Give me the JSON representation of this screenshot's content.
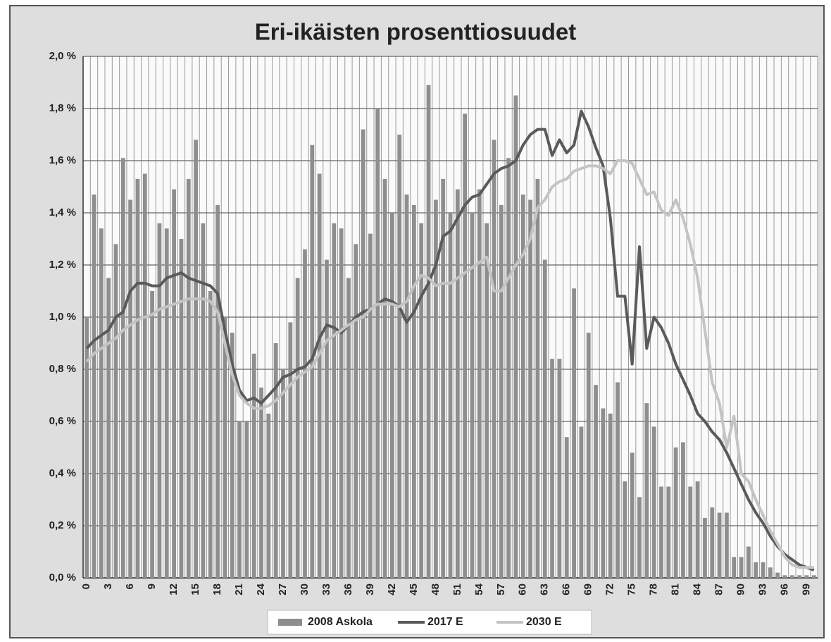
{
  "chart_data": {
    "type": "combo",
    "title": "Eri-ikäisten prosenttiosuudet",
    "categories": [
      "0",
      null,
      null,
      "3",
      null,
      null,
      "6",
      null,
      null,
      "9",
      null,
      null,
      "12",
      null,
      null,
      "15",
      null,
      null,
      "18",
      null,
      null,
      "21",
      null,
      null,
      "24",
      null,
      null,
      "27",
      null,
      null,
      "30",
      null,
      null,
      "33",
      null,
      null,
      "36",
      null,
      null,
      "39",
      null,
      null,
      "42",
      null,
      null,
      "45",
      null,
      null,
      "48",
      null,
      null,
      "51",
      null,
      null,
      "54",
      null,
      null,
      "57",
      null,
      null,
      "60",
      null,
      null,
      "63",
      null,
      null,
      "66",
      null,
      null,
      "69",
      null,
      null,
      "72",
      null,
      null,
      "75",
      null,
      null,
      "78",
      null,
      null,
      "81",
      null,
      null,
      "84",
      null,
      null,
      "87",
      null,
      null,
      "90",
      null,
      null,
      "93",
      null,
      null,
      "96",
      null,
      null,
      "99",
      null
    ],
    "series": [
      {
        "name": "2008 Askola",
        "type": "bar",
        "color": "#8e8e8e",
        "values": [
          1.0,
          1.47,
          1.34,
          1.15,
          1.28,
          1.61,
          1.45,
          1.53,
          1.55,
          1.1,
          1.36,
          1.34,
          1.49,
          1.3,
          1.53,
          1.68,
          1.36,
          1.1,
          1.43,
          1.0,
          0.94,
          0.6,
          0.6,
          0.86,
          0.73,
          0.63,
          0.9,
          0.8,
          0.98,
          1.15,
          1.26,
          1.66,
          1.55,
          1.22,
          1.36,
          1.34,
          1.15,
          1.28,
          1.72,
          1.32,
          1.8,
          1.53,
          1.4,
          1.7,
          1.47,
          1.43,
          1.36,
          1.89,
          1.45,
          1.53,
          1.4,
          1.49,
          1.78,
          1.4,
          1.49,
          1.36,
          1.68,
          1.43,
          1.61,
          1.85,
          1.47,
          1.45,
          1.53,
          1.22,
          0.84,
          0.84,
          0.54,
          1.11,
          0.58,
          0.94,
          0.74,
          0.65,
          0.63,
          0.75,
          0.37,
          0.48,
          0.31,
          0.67,
          0.58,
          0.35,
          0.35,
          0.5,
          0.52,
          0.35,
          0.37,
          0.23,
          0.27,
          0.25,
          0.25,
          0.08,
          0.08,
          0.12,
          0.06,
          0.06,
          0.04,
          0.02,
          0.01,
          0.01,
          0.01,
          0.01,
          0.01
        ]
      },
      {
        "name": "2017 E",
        "type": "line",
        "color": "#5a5a5a",
        "values": [
          0.88,
          0.91,
          0.93,
          0.95,
          1.0,
          1.02,
          1.1,
          1.13,
          1.13,
          1.12,
          1.12,
          1.15,
          1.16,
          1.17,
          1.15,
          1.14,
          1.13,
          1.12,
          1.09,
          0.95,
          0.82,
          0.72,
          0.68,
          0.69,
          0.67,
          0.7,
          0.73,
          0.77,
          0.78,
          0.8,
          0.81,
          0.84,
          0.92,
          0.97,
          0.96,
          0.94,
          0.97,
          1.0,
          1.02,
          1.03,
          1.05,
          1.07,
          1.06,
          1.04,
          0.98,
          1.02,
          1.08,
          1.13,
          1.2,
          1.31,
          1.33,
          1.38,
          1.43,
          1.46,
          1.47,
          1.51,
          1.55,
          1.57,
          1.58,
          1.6,
          1.66,
          1.7,
          1.72,
          1.72,
          1.62,
          1.68,
          1.63,
          1.66,
          1.79,
          1.73,
          1.65,
          1.58,
          1.38,
          1.08,
          1.08,
          0.82,
          1.27,
          0.88,
          1.0,
          0.96,
          0.9,
          0.82,
          0.76,
          0.7,
          0.63,
          0.6,
          0.56,
          0.53,
          0.48,
          0.42,
          0.36,
          0.3,
          0.25,
          0.21,
          0.16,
          0.12,
          0.09,
          0.07,
          0.05,
          0.04,
          0.03
        ]
      },
      {
        "name": "2030 E",
        "type": "line",
        "color": "#c4c4c4",
        "values": [
          0.83,
          0.86,
          0.88,
          0.9,
          0.92,
          0.95,
          0.97,
          0.99,
          1.0,
          1.01,
          1.03,
          1.04,
          1.05,
          1.06,
          1.07,
          1.07,
          1.07,
          1.06,
          1.02,
          0.9,
          0.78,
          0.7,
          0.67,
          0.65,
          0.65,
          0.66,
          0.68,
          0.71,
          0.74,
          0.77,
          0.79,
          0.81,
          0.86,
          0.91,
          0.93,
          0.95,
          0.97,
          0.99,
          1.0,
          1.03,
          1.05,
          1.05,
          1.05,
          1.04,
          1.06,
          1.12,
          1.16,
          1.15,
          1.12,
          1.13,
          1.13,
          1.15,
          1.17,
          1.19,
          1.21,
          1.23,
          1.1,
          1.1,
          1.15,
          1.2,
          1.24,
          1.3,
          1.42,
          1.45,
          1.5,
          1.52,
          1.53,
          1.56,
          1.57,
          1.58,
          1.58,
          1.57,
          1.55,
          1.6,
          1.6,
          1.59,
          1.53,
          1.47,
          1.48,
          1.41,
          1.39,
          1.45,
          1.38,
          1.28,
          1.15,
          0.95,
          0.75,
          0.67,
          0.5,
          0.62,
          0.4,
          0.37,
          0.3,
          0.24,
          0.18,
          0.13,
          0.08,
          0.05,
          0.04,
          0.04,
          0.04
        ]
      }
    ],
    "ylim": [
      0,
      2
    ],
    "yticks": [
      {
        "value": 0,
        "label": "0,0 %"
      },
      {
        "value": 0.2,
        "label": "0,2 %"
      },
      {
        "value": 0.4,
        "label": "0,4 %"
      },
      {
        "value": 0.6,
        "label": "0,6 %"
      },
      {
        "value": 0.8,
        "label": "0,8 %"
      },
      {
        "value": 1.0,
        "label": "1,0 %"
      },
      {
        "value": 1.2,
        "label": "1,2 %"
      },
      {
        "value": 1.4,
        "label": "1,4 %"
      },
      {
        "value": 1.6,
        "label": "1,6 %"
      },
      {
        "value": 1.8,
        "label": "1,8 %"
      },
      {
        "value": 2.0,
        "label": "2,0 %"
      }
    ],
    "grid": true,
    "legend": "bottom"
  }
}
